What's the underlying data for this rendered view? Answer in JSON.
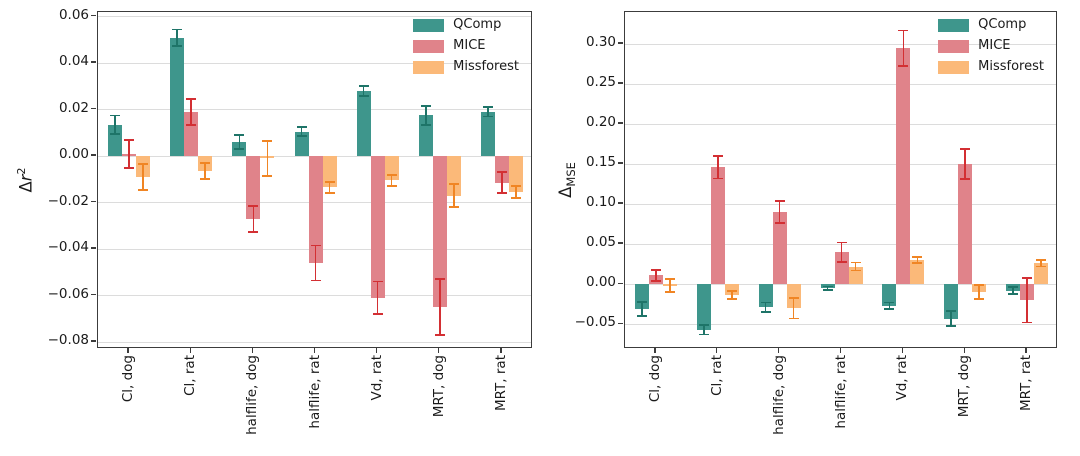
{
  "figure": {
    "background": "#ffffff",
    "grid_color": "#dcdcdc",
    "spine_color": "#3c3c3c",
    "series_colors": {
      "QComp": "#3e968c",
      "MICE": "#e0838a",
      "Missforest": "#fbb979"
    },
    "error_colors": {
      "QComp": "#1e7468",
      "MICE": "#d32f33",
      "Missforest": "#f08524"
    }
  },
  "chart_data": [
    {
      "type": "bar",
      "title": "",
      "xlabel": "",
      "ylabel": "Δr²",
      "ylabel_parts": {
        "prefix": "Δ",
        "italic": "r",
        "sup": "2"
      },
      "grid": true,
      "legend_position": "upper right",
      "legend": [
        "QComp",
        "MICE",
        "Missforest"
      ],
      "categories": [
        "Cl, dog",
        "Cl, rat",
        "halflife, dog",
        "halflife, rat",
        "Vd, rat",
        "MRT, dog",
        "MRT, rat"
      ],
      "ylim": [
        -0.083,
        0.062
      ],
      "yticks": [
        0.06,
        0.04,
        0.02,
        0.0,
        -0.02,
        -0.04,
        -0.06,
        -0.08
      ],
      "ytick_labels": [
        "0.06",
        "0.04",
        "0.02",
        "0.00",
        "−0.02",
        "−0.04",
        "−0.06",
        "−0.08"
      ],
      "series": [
        {
          "name": "QComp",
          "values": [
            0.0135,
            0.051,
            0.006,
            0.0105,
            0.028,
            0.0175,
            0.019
          ],
          "errors": [
            0.004,
            0.0035,
            0.003,
            0.002,
            0.002,
            0.004,
            0.002
          ]
        },
        {
          "name": "MICE",
          "values": [
            0.001,
            0.019,
            -0.027,
            -0.046,
            -0.061,
            -0.065,
            -0.0115
          ],
          "errors": [
            0.006,
            0.0055,
            0.0055,
            0.0075,
            0.007,
            0.012,
            0.0045
          ]
        },
        {
          "name": "Missforest",
          "values": [
            -0.009,
            -0.0065,
            -0.001,
            -0.0135,
            -0.0105,
            -0.017,
            -0.0155
          ],
          "errors": [
            0.0055,
            0.0035,
            0.0075,
            0.0025,
            0.0025,
            0.005,
            0.0025
          ]
        }
      ]
    },
    {
      "type": "bar",
      "title": "",
      "xlabel": "",
      "ylabel": "Δ_MSE",
      "ylabel_parts": {
        "prefix": "Δ",
        "sub": "MSE"
      },
      "grid": true,
      "legend_position": "upper right",
      "legend": [
        "QComp",
        "MICE",
        "Missforest"
      ],
      "categories": [
        "Cl, dog",
        "Cl, rat",
        "halflife, dog",
        "halflife, rat",
        "Vd, rat",
        "MRT, dog",
        "MRT, rat"
      ],
      "ylim": [
        -0.081,
        0.34
      ],
      "yticks": [
        0.3,
        0.25,
        0.2,
        0.15,
        0.1,
        0.05,
        0.0,
        -0.05
      ],
      "ytick_labels": [
        "0.30",
        "0.25",
        "0.20",
        "0.15",
        "0.10",
        "0.05",
        "0.00",
        "−0.05"
      ],
      "series": [
        {
          "name": "QComp",
          "values": [
            -0.031,
            -0.057,
            -0.029,
            -0.005,
            -0.027,
            -0.043,
            -0.008
          ],
          "errors": [
            0.009,
            0.006,
            0.006,
            0.002,
            0.004,
            0.009,
            0.004
          ]
        },
        {
          "name": "MICE",
          "values": [
            0.011,
            0.146,
            0.09,
            0.04,
            0.295,
            0.15,
            -0.02
          ],
          "errors": [
            0.007,
            0.014,
            0.014,
            0.012,
            0.022,
            0.019,
            0.028
          ]
        },
        {
          "name": "Missforest",
          "values": [
            -0.002,
            -0.014,
            -0.03,
            0.022,
            0.03,
            -0.01,
            0.026
          ],
          "errors": [
            0.008,
            0.005,
            0.013,
            0.005,
            0.004,
            0.009,
            0.004
          ]
        }
      ]
    }
  ]
}
